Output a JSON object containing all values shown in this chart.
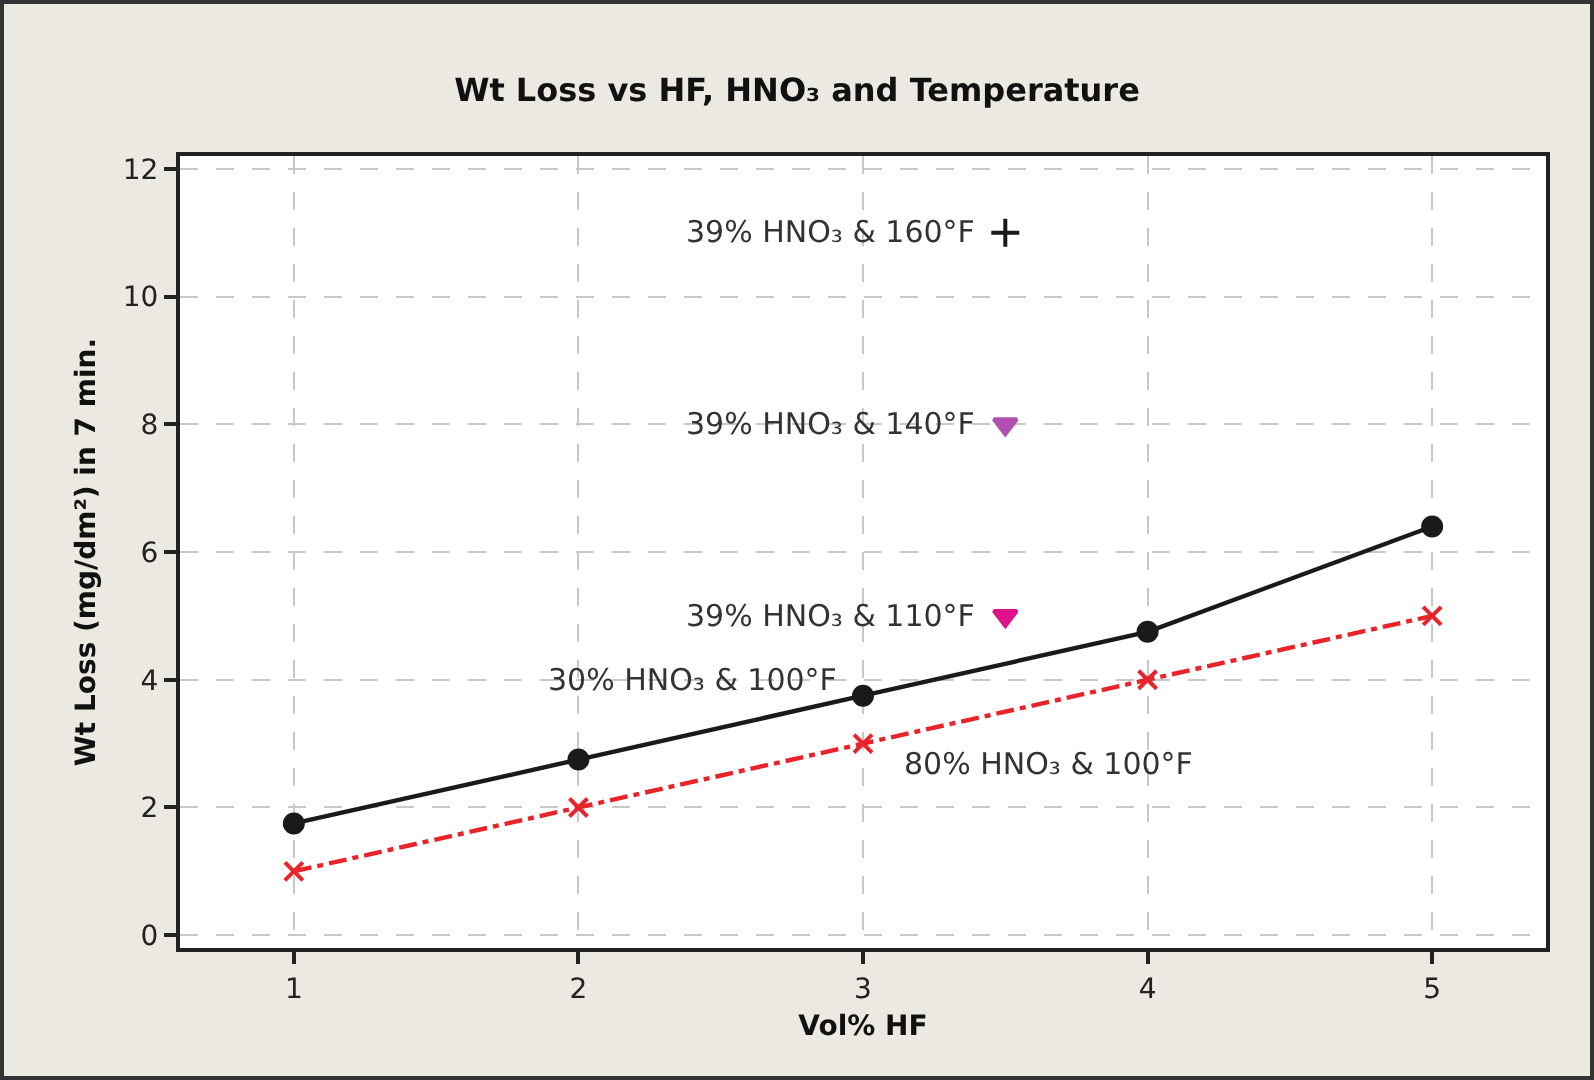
{
  "chart_data": {
    "type": "line",
    "title": "Wt Loss vs HF, HNO₃ and Temperature",
    "xlabel": "Vol% HF",
    "ylabel": "Wt Loss (mg/dm²) in 7 min.",
    "xlim": [
      0.6,
      5.4
    ],
    "xticks": [
      1,
      2,
      3,
      4,
      5
    ],
    "ylim": [
      -0.2,
      12.2
    ],
    "yticks": [
      0,
      2,
      4,
      6,
      8,
      10,
      12
    ],
    "grid": true,
    "legend": false,
    "series": [
      {
        "name": "30% HNO₃ & 100°F",
        "color": "#1a1a1a",
        "x": [
          1,
          2,
          3,
          4,
          5
        ],
        "values": [
          1.75,
          2.75,
          3.75,
          4.75,
          6.4
        ],
        "marker": "circle",
        "line_style": "solid"
      },
      {
        "name": "80% HNO₃ & 100°F",
        "color": "#e8242a",
        "x": [
          1,
          2,
          3,
          4,
          5
        ],
        "values": [
          1,
          2,
          3,
          4,
          5
        ],
        "marker": "cross",
        "line_style": "dashed"
      },
      {
        "name": "39% HNO₃ & 110°F",
        "type": "scatter",
        "color": "#e0108a",
        "x": [
          3.5
        ],
        "values": [
          5
        ],
        "marker": "triangle"
      },
      {
        "name": "39% HNO₃ & 140°F",
        "type": "scatter",
        "color": "#b050b0",
        "x": [
          3.5
        ],
        "values": [
          8
        ],
        "marker": "triangle"
      },
      {
        "name": "39% HNO₃ & 160°F",
        "type": "scatter",
        "color": "#1a1a1a",
        "x": [
          3.5
        ],
        "values": [
          11
        ],
        "marker": "cross"
      }
    ]
  }
}
